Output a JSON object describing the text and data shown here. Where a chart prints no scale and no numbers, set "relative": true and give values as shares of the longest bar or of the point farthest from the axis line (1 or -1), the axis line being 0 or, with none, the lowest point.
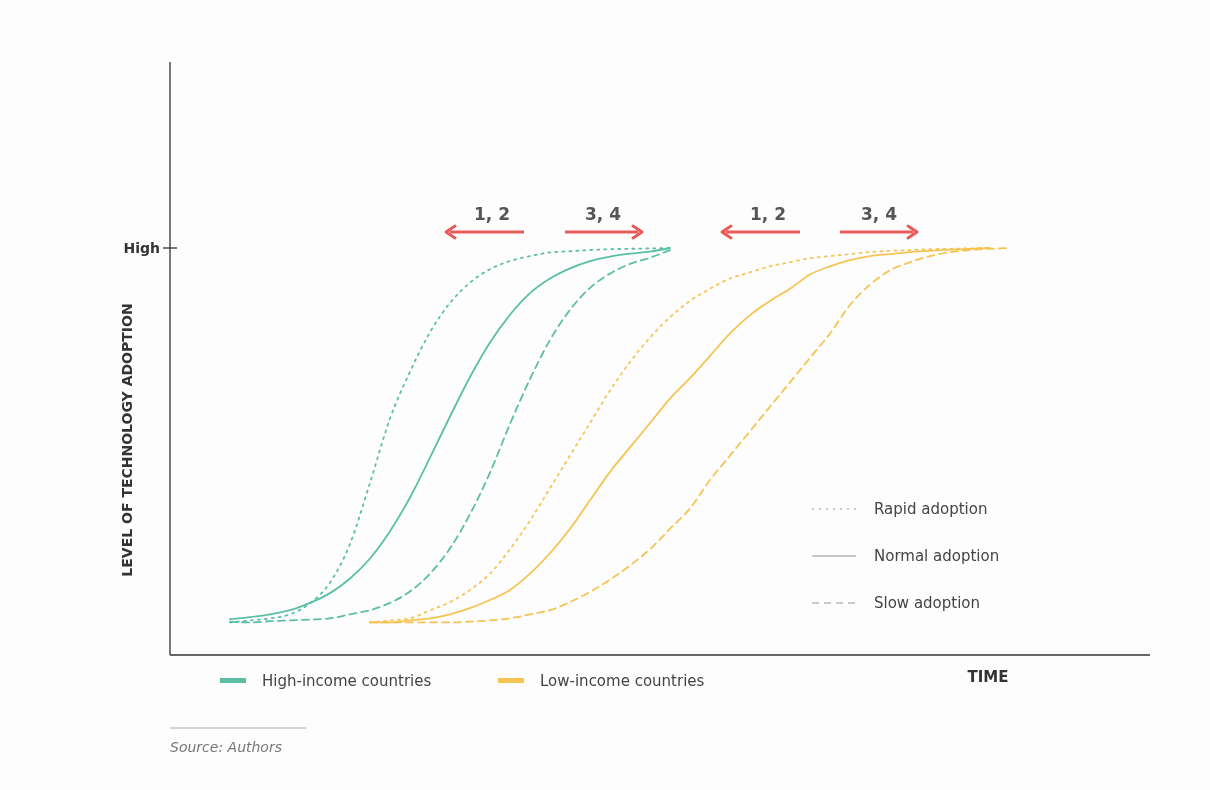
{
  "chart_data": {
    "type": "line",
    "relative": true,
    "xlabel": "TIME",
    "ylabel": "LEVEL OF TECHNOLOGY ADOPTION",
    "legend": "bottom left",
    "categories": [
      null,
      null,
      null,
      null,
      null,
      null,
      null,
      null,
      null,
      null,
      null,
      null,
      null,
      null,
      null,
      null,
      null,
      null,
      null,
      null,
      null,
      null,
      null,
      null,
      null,
      null,
      null,
      null,
      null,
      null,
      null,
      null,
      null,
      null,
      null,
      null,
      null,
      null,
      null,
      null,
      null,
      null,
      null,
      null,
      null,
      null,
      null,
      null,
      null,
      null
    ],
    "series": [
      {
        "name": "High-income countries",
        "color": "#5bbfa6",
        "line_style": "dotted",
        "values": [
          null,
          null,
          null,
          0.08,
          0.085,
          0.09,
          0.1,
          0.127,
          0.178,
          0.273,
          0.423,
          0.581,
          0.696,
          0.793,
          0.865,
          0.915,
          0.948,
          0.968,
          0.98,
          0.989,
          0.992,
          0.995,
          0.997,
          0.998,
          0.999,
          1,
          null,
          null,
          null,
          null,
          null,
          null,
          null,
          null,
          null,
          null,
          null,
          null,
          null,
          null,
          null,
          null,
          null,
          null,
          null,
          null,
          null,
          null,
          null,
          null
        ]
      },
      {
        "color": "#5bbfa6",
        "line_style": "solid",
        "values": [
          null,
          null,
          null,
          0.088,
          0.093,
          0.1,
          0.11,
          0.128,
          0.152,
          0.188,
          0.237,
          0.304,
          0.387,
          0.485,
          0.586,
          0.683,
          0.768,
          0.836,
          0.889,
          0.925,
          0.95,
          0.968,
          0.979,
          0.986,
          0.991,
          1,
          null,
          null,
          null,
          null,
          null,
          null,
          null,
          null,
          null,
          null,
          null,
          null,
          null,
          null,
          null,
          null,
          null,
          null,
          null,
          null,
          null,
          null,
          null,
          null
        ]
      },
      {
        "color": "#5bbfa6",
        "line_style": "dashed",
        "values": [
          null,
          null,
          null,
          0.082,
          0.08,
          0.083,
          0.085,
          0.087,
          0.09,
          0.1,
          0.11,
          0.128,
          0.156,
          0.2,
          0.262,
          0.346,
          0.448,
          0.568,
          0.678,
          0.774,
          0.848,
          0.902,
          0.937,
          0.961,
          0.976,
          0.995,
          null,
          null,
          null,
          null,
          null,
          null,
          null,
          null,
          null,
          null,
          null,
          null,
          null,
          null,
          null,
          null,
          null,
          null,
          null,
          null,
          null,
          null,
          null,
          null
        ]
      },
      {
        "name": "Low-income countries",
        "color": "#f5c453",
        "line_style": "dotted",
        "values": [
          null,
          null,
          null,
          null,
          null,
          null,
          null,
          null,
          null,
          null,
          0.08,
          0.085,
          0.09,
          0.11,
          0.13,
          0.16,
          0.2,
          0.26,
          0.33,
          0.41,
          0.49,
          0.57,
          0.65,
          0.72,
          0.78,
          0.83,
          0.87,
          0.9,
          0.925,
          0.94,
          0.955,
          0.965,
          0.975,
          0.98,
          0.985,
          0.99,
          0.993,
          0.995,
          0.997,
          0.998,
          0.999,
          1,
          null,
          null,
          null,
          null,
          null,
          null,
          null,
          null
        ]
      },
      {
        "color": "#f5c453",
        "line_style": "solid",
        "values": [
          null,
          null,
          null,
          null,
          null,
          null,
          null,
          null,
          null,
          null,
          0.08,
          0.08,
          0.085,
          0.09,
          0.1,
          0.115,
          0.135,
          0.16,
          0.2,
          0.25,
          0.31,
          0.38,
          0.45,
          0.51,
          0.57,
          0.63,
          0.68,
          0.735,
          0.79,
          0.835,
          0.87,
          0.9,
          0.935,
          0.955,
          0.97,
          0.98,
          0.985,
          0.99,
          0.993,
          0.996,
          0.998,
          1,
          null,
          null,
          null,
          null,
          null,
          null,
          null,
          null
        ]
      },
      {
        "color": "#f5c453",
        "line_style": "dashed",
        "values": [
          null,
          null,
          null,
          null,
          null,
          null,
          null,
          null,
          null,
          null,
          0.08,
          0.08,
          0.08,
          0.08,
          0.08,
          0.082,
          0.085,
          0.09,
          0.1,
          0.11,
          0.13,
          0.155,
          0.185,
          0.22,
          0.26,
          0.31,
          0.36,
          0.43,
          0.49,
          0.55,
          0.61,
          0.67,
          0.73,
          0.79,
          0.86,
          0.91,
          0.945,
          0.965,
          0.98,
          0.99,
          0.995,
          0.998,
          1,
          null,
          null,
          null,
          null,
          null,
          null,
          null
        ]
      }
    ],
    "annotations": [
      "High",
      "1, 2",
      "3, 4",
      "1, 2",
      "3, 4",
      "Rapid adoption",
      "Normal adoption",
      "Slow adoption",
      "Source: Authors"
    ]
  }
}
